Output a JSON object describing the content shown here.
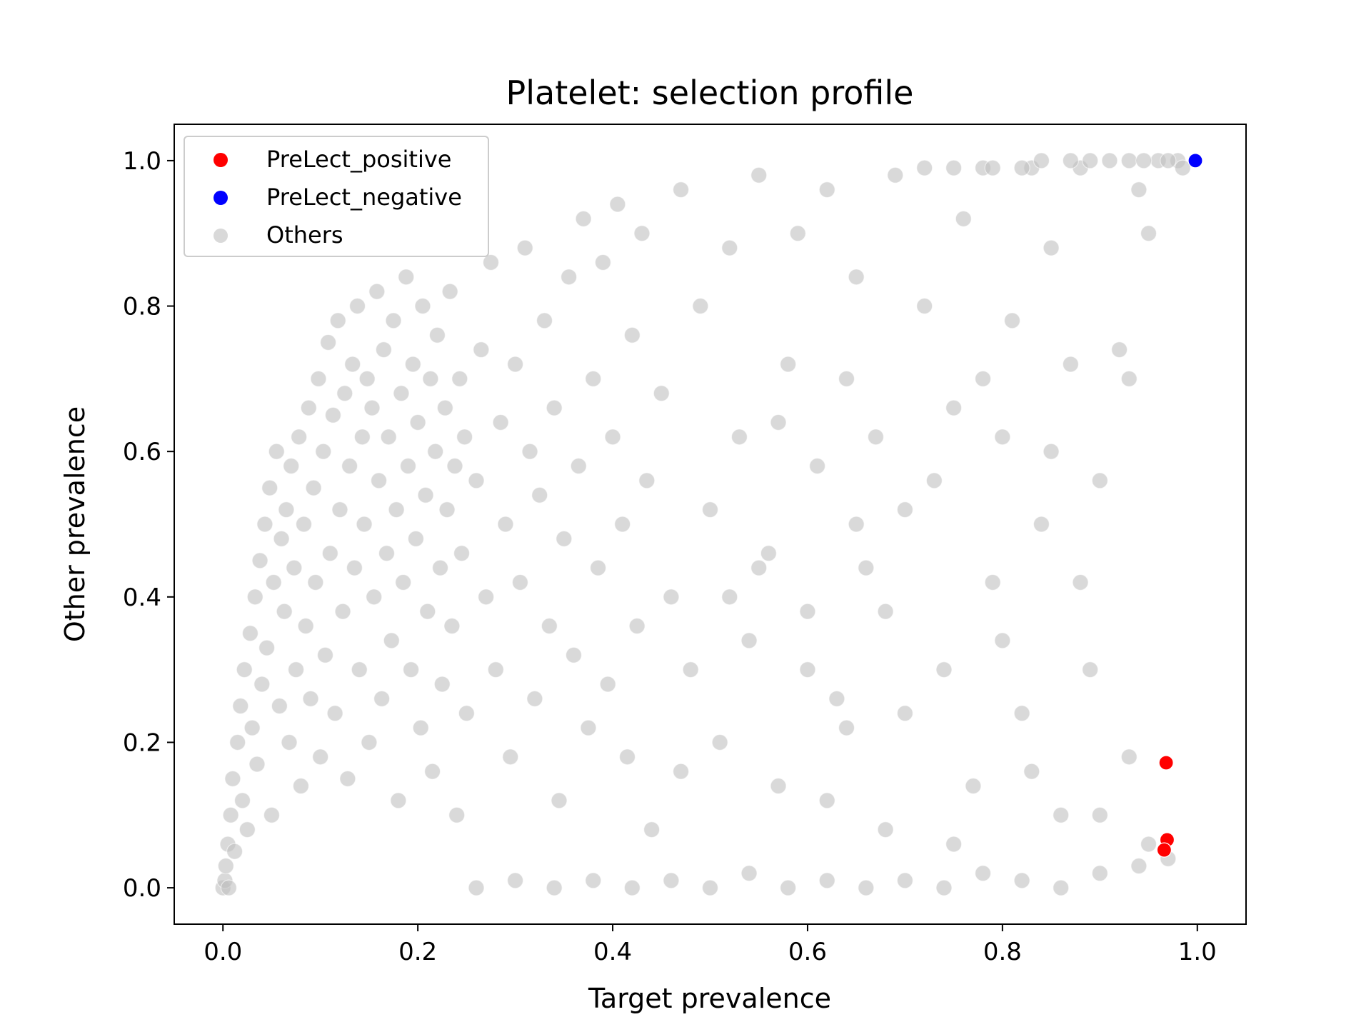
{
  "chart_data": {
    "type": "scatter",
    "title": "Platelet: selection profile",
    "xlabel": "Target prevalence",
    "ylabel": "Other prevalence",
    "xlim": [
      -0.05,
      1.05
    ],
    "ylim": [
      -0.05,
      1.05
    ],
    "xticks": [
      "0.0",
      "0.2",
      "0.4",
      "0.6",
      "0.8",
      "1.0"
    ],
    "yticks": [
      "0.0",
      "0.2",
      "0.4",
      "0.6",
      "0.8",
      "1.0"
    ],
    "grid": false,
    "legend_position": "top-left",
    "series": [
      {
        "name": "PreLect_positive",
        "color": "#ff0000",
        "points": [
          [
            0.968,
            0.172
          ],
          [
            0.969,
            0.066
          ],
          [
            0.966,
            0.052
          ]
        ]
      },
      {
        "name": "PreLect_negative",
        "color": "#0000ff",
        "points": [
          [
            0.998,
            1.0
          ]
        ]
      },
      {
        "name": "Others",
        "color": "#c0c0c0",
        "note_points": "approximate sample of the dense background cloud",
        "points": [
          [
            0.0,
            0.0
          ],
          [
            0.002,
            0.01
          ],
          [
            0.003,
            0.03
          ],
          [
            0.005,
            0.06
          ],
          [
            0.006,
            0.0
          ],
          [
            0.008,
            0.1
          ],
          [
            0.01,
            0.15
          ],
          [
            0.012,
            0.05
          ],
          [
            0.015,
            0.2
          ],
          [
            0.018,
            0.25
          ],
          [
            0.02,
            0.12
          ],
          [
            0.022,
            0.3
          ],
          [
            0.025,
            0.08
          ],
          [
            0.028,
            0.35
          ],
          [
            0.03,
            0.22
          ],
          [
            0.033,
            0.4
          ],
          [
            0.035,
            0.17
          ],
          [
            0.038,
            0.45
          ],
          [
            0.04,
            0.28
          ],
          [
            0.043,
            0.5
          ],
          [
            0.045,
            0.33
          ],
          [
            0.048,
            0.55
          ],
          [
            0.05,
            0.1
          ],
          [
            0.052,
            0.42
          ],
          [
            0.055,
            0.6
          ],
          [
            0.058,
            0.25
          ],
          [
            0.06,
            0.48
          ],
          [
            0.063,
            0.38
          ],
          [
            0.065,
            0.52
          ],
          [
            0.068,
            0.2
          ],
          [
            0.07,
            0.58
          ],
          [
            0.073,
            0.44
          ],
          [
            0.075,
            0.3
          ],
          [
            0.078,
            0.62
          ],
          [
            0.08,
            0.14
          ],
          [
            0.083,
            0.5
          ],
          [
            0.085,
            0.36
          ],
          [
            0.088,
            0.66
          ],
          [
            0.09,
            0.26
          ],
          [
            0.093,
            0.55
          ],
          [
            0.095,
            0.42
          ],
          [
            0.098,
            0.7
          ],
          [
            0.1,
            0.18
          ],
          [
            0.103,
            0.6
          ],
          [
            0.105,
            0.32
          ],
          [
            0.108,
            0.75
          ],
          [
            0.11,
            0.46
          ],
          [
            0.113,
            0.65
          ],
          [
            0.115,
            0.24
          ],
          [
            0.118,
            0.78
          ],
          [
            0.12,
            0.52
          ],
          [
            0.123,
            0.38
          ],
          [
            0.125,
            0.68
          ],
          [
            0.128,
            0.15
          ],
          [
            0.13,
            0.58
          ],
          [
            0.133,
            0.72
          ],
          [
            0.135,
            0.44
          ],
          [
            0.138,
            0.8
          ],
          [
            0.14,
            0.3
          ],
          [
            0.143,
            0.62
          ],
          [
            0.145,
            0.5
          ],
          [
            0.148,
            0.7
          ],
          [
            0.15,
            0.2
          ],
          [
            0.153,
            0.66
          ],
          [
            0.155,
            0.4
          ],
          [
            0.158,
            0.82
          ],
          [
            0.16,
            0.56
          ],
          [
            0.163,
            0.26
          ],
          [
            0.165,
            0.74
          ],
          [
            0.168,
            0.46
          ],
          [
            0.17,
            0.62
          ],
          [
            0.173,
            0.34
          ],
          [
            0.175,
            0.78
          ],
          [
            0.178,
            0.52
          ],
          [
            0.18,
            0.12
          ],
          [
            0.183,
            0.68
          ],
          [
            0.185,
            0.42
          ],
          [
            0.188,
            0.84
          ],
          [
            0.19,
            0.58
          ],
          [
            0.193,
            0.3
          ],
          [
            0.195,
            0.72
          ],
          [
            0.198,
            0.48
          ],
          [
            0.2,
            0.64
          ],
          [
            0.203,
            0.22
          ],
          [
            0.205,
            0.8
          ],
          [
            0.208,
            0.54
          ],
          [
            0.21,
            0.38
          ],
          [
            0.213,
            0.7
          ],
          [
            0.215,
            0.16
          ],
          [
            0.218,
            0.6
          ],
          [
            0.22,
            0.76
          ],
          [
            0.223,
            0.44
          ],
          [
            0.225,
            0.28
          ],
          [
            0.228,
            0.66
          ],
          [
            0.23,
            0.52
          ],
          [
            0.233,
            0.82
          ],
          [
            0.235,
            0.36
          ],
          [
            0.238,
            0.58
          ],
          [
            0.24,
            0.1
          ],
          [
            0.243,
            0.7
          ],
          [
            0.245,
            0.46
          ],
          [
            0.248,
            0.62
          ],
          [
            0.25,
            0.24
          ],
          [
            0.26,
            0.56
          ],
          [
            0.265,
            0.74
          ],
          [
            0.27,
            0.4
          ],
          [
            0.275,
            0.86
          ],
          [
            0.28,
            0.3
          ],
          [
            0.285,
            0.64
          ],
          [
            0.29,
            0.5
          ],
          [
            0.295,
            0.18
          ],
          [
            0.3,
            0.72
          ],
          [
            0.305,
            0.42
          ],
          [
            0.31,
            0.88
          ],
          [
            0.315,
            0.6
          ],
          [
            0.32,
            0.26
          ],
          [
            0.325,
            0.54
          ],
          [
            0.33,
            0.78
          ],
          [
            0.335,
            0.36
          ],
          [
            0.34,
            0.66
          ],
          [
            0.345,
            0.12
          ],
          [
            0.35,
            0.48
          ],
          [
            0.355,
            0.84
          ],
          [
            0.36,
            0.32
          ],
          [
            0.365,
            0.58
          ],
          [
            0.37,
            0.92
          ],
          [
            0.375,
            0.22
          ],
          [
            0.38,
            0.7
          ],
          [
            0.385,
            0.44
          ],
          [
            0.39,
            0.86
          ],
          [
            0.395,
            0.28
          ],
          [
            0.4,
            0.62
          ],
          [
            0.405,
            0.94
          ],
          [
            0.41,
            0.5
          ],
          [
            0.415,
            0.18
          ],
          [
            0.42,
            0.76
          ],
          [
            0.425,
            0.36
          ],
          [
            0.43,
            0.9
          ],
          [
            0.435,
            0.56
          ],
          [
            0.44,
            0.08
          ],
          [
            0.45,
            0.68
          ],
          [
            0.46,
            0.4
          ],
          [
            0.47,
            0.96
          ],
          [
            0.48,
            0.3
          ],
          [
            0.49,
            0.8
          ],
          [
            0.5,
            0.52
          ],
          [
            0.51,
            0.2
          ],
          [
            0.52,
            0.88
          ],
          [
            0.53,
            0.62
          ],
          [
            0.54,
            0.34
          ],
          [
            0.55,
            0.98
          ],
          [
            0.56,
            0.46
          ],
          [
            0.57,
            0.14
          ],
          [
            0.58,
            0.72
          ],
          [
            0.59,
            0.9
          ],
          [
            0.6,
            0.38
          ],
          [
            0.61,
            0.58
          ],
          [
            0.62,
            0.96
          ],
          [
            0.63,
            0.26
          ],
          [
            0.64,
            0.7
          ],
          [
            0.65,
            0.84
          ],
          [
            0.66,
            0.44
          ],
          [
            0.67,
            0.62
          ],
          [
            0.68,
            0.08
          ],
          [
            0.69,
            0.98
          ],
          [
            0.7,
            0.52
          ],
          [
            0.72,
            0.8
          ],
          [
            0.74,
            0.3
          ],
          [
            0.75,
            0.66
          ],
          [
            0.76,
            0.92
          ],
          [
            0.77,
            0.14
          ],
          [
            0.78,
            0.99
          ],
          [
            0.79,
            0.42
          ],
          [
            0.8,
            0.62
          ],
          [
            0.81,
            0.78
          ],
          [
            0.82,
            0.24
          ],
          [
            0.83,
            0.99
          ],
          [
            0.84,
            0.5
          ],
          [
            0.85,
            0.88
          ],
          [
            0.86,
            0.1
          ],
          [
            0.87,
            0.72
          ],
          [
            0.88,
            0.99
          ],
          [
            0.89,
            0.3
          ],
          [
            0.9,
            0.56
          ],
          [
            0.91,
            1.0
          ],
          [
            0.92,
            0.74
          ],
          [
            0.93,
            0.18
          ],
          [
            0.94,
            0.96
          ],
          [
            0.95,
            0.9
          ],
          [
            0.96,
            1.0
          ],
          [
            0.97,
            0.04
          ],
          [
            0.98,
            1.0
          ],
          [
            0.985,
            0.99
          ],
          [
            0.26,
            0.0
          ],
          [
            0.3,
            0.01
          ],
          [
            0.34,
            0.0
          ],
          [
            0.38,
            0.01
          ],
          [
            0.42,
            0.0
          ],
          [
            0.46,
            0.01
          ],
          [
            0.5,
            0.0
          ],
          [
            0.54,
            0.02
          ],
          [
            0.58,
            0.0
          ],
          [
            0.62,
            0.01
          ],
          [
            0.66,
            0.0
          ],
          [
            0.7,
            0.01
          ],
          [
            0.74,
            0.0
          ],
          [
            0.78,
            0.02
          ],
          [
            0.82,
            0.01
          ],
          [
            0.86,
            0.0
          ],
          [
            0.9,
            0.02
          ],
          [
            0.94,
            0.03
          ],
          [
            0.72,
            0.99
          ],
          [
            0.75,
            0.99
          ],
          [
            0.79,
            0.99
          ],
          [
            0.82,
            0.99
          ],
          [
            0.84,
            1.0
          ],
          [
            0.87,
            1.0
          ],
          [
            0.89,
            1.0
          ],
          [
            0.93,
            1.0
          ],
          [
            0.945,
            1.0
          ],
          [
            0.97,
            1.0
          ],
          [
            0.55,
            0.44
          ],
          [
            0.6,
            0.3
          ],
          [
            0.65,
            0.5
          ],
          [
            0.7,
            0.24
          ],
          [
            0.75,
            0.06
          ],
          [
            0.8,
            0.34
          ],
          [
            0.85,
            0.6
          ],
          [
            0.9,
            0.1
          ],
          [
            0.62,
            0.12
          ],
          [
            0.68,
            0.38
          ],
          [
            0.73,
            0.56
          ],
          [
            0.78,
            0.7
          ],
          [
            0.83,
            0.16
          ],
          [
            0.88,
            0.42
          ],
          [
            0.93,
            0.7
          ],
          [
            0.95,
            0.06
          ],
          [
            0.64,
            0.22
          ],
          [
            0.57,
            0.64
          ],
          [
            0.52,
            0.4
          ],
          [
            0.47,
            0.16
          ]
        ]
      }
    ]
  }
}
